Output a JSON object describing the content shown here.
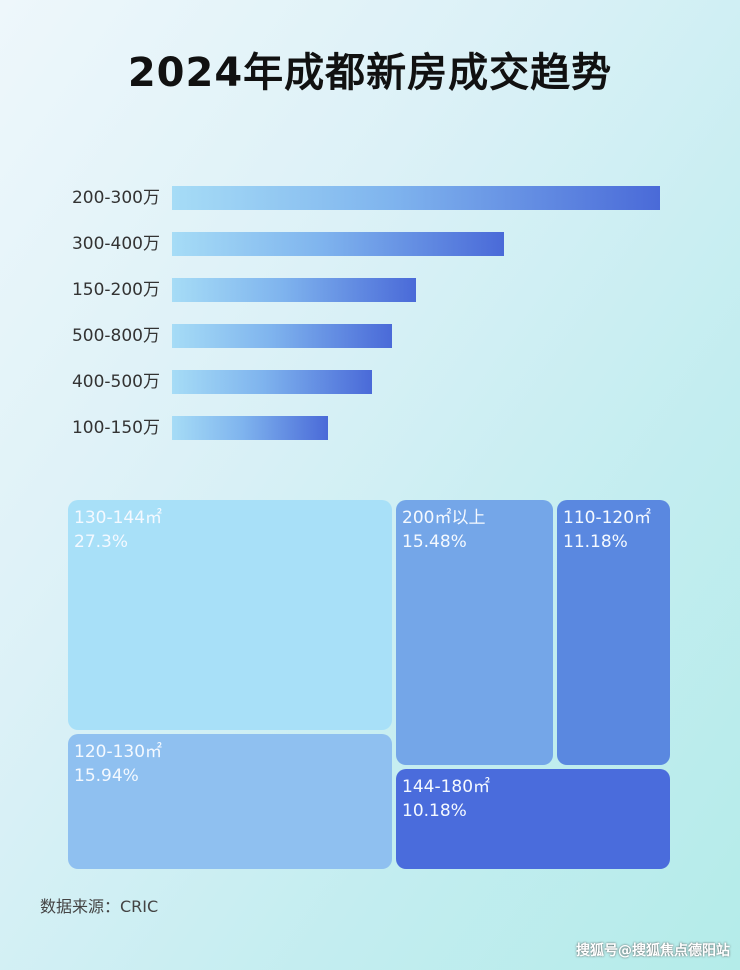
{
  "chart_data": [
    {
      "type": "bar",
      "orientation": "horizontal",
      "title": "2024年成都新房成交趋势",
      "categories": [
        "200-300万",
        "300-400万",
        "150-200万",
        "500-800万",
        "400-500万",
        "100-150万"
      ],
      "values": [
        100,
        68,
        50,
        45,
        41,
        32
      ],
      "value_note": "relative bar length, no axis printed",
      "grid": false,
      "colors": {
        "bar_start": "#a6dcf6",
        "bar_end": "#4a6ad8"
      }
    },
    {
      "type": "treemap",
      "items": [
        {
          "label": "130-144㎡",
          "value_text": "27.3%",
          "value": 27.3,
          "color": "#a8e0f8"
        },
        {
          "label": "120-130㎡",
          "value_text": "15.94%",
          "value": 15.94,
          "color": "#8fc0f0"
        },
        {
          "label": "200㎡以上",
          "value_text": "15.48%",
          "value": 15.48,
          "color": "#74a6e8"
        },
        {
          "label": "110-120㎡",
          "value_text": "11.18%",
          "value": 11.18,
          "color": "#5a88e0"
        },
        {
          "label": "144-180㎡",
          "value_text": "10.18%",
          "value": 10.18,
          "color": "#4a6cdc"
        }
      ]
    }
  ],
  "footer": "数据来源：CRIC",
  "watermark": "搜狐号@搜狐焦点德阳站"
}
